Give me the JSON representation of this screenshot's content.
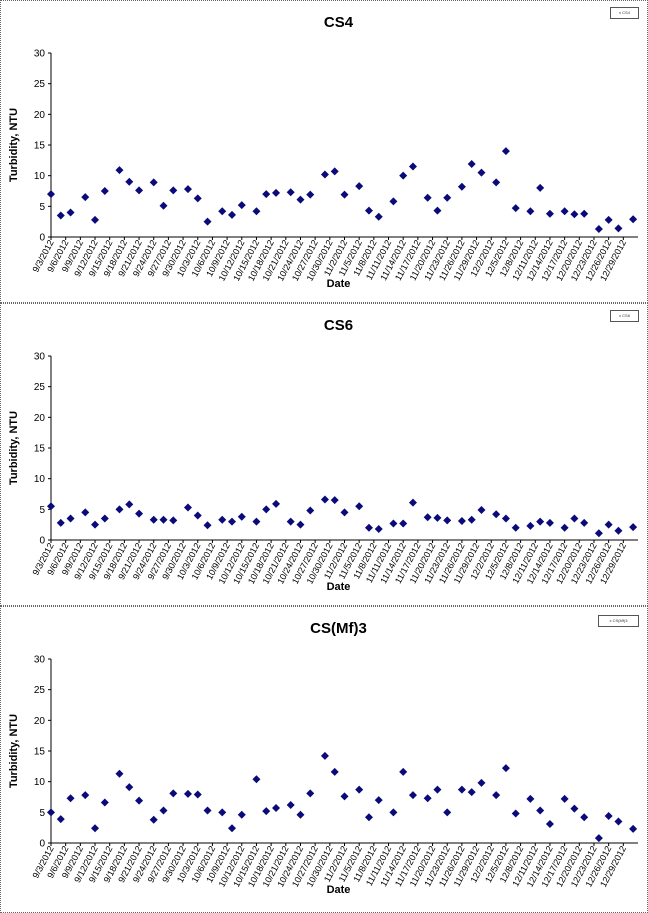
{
  "chart_data": [
    {
      "type": "scatter",
      "title": "CS4",
      "xlabel": "Date",
      "ylabel": "Turbidity, NTU",
      "legend": "x CS4",
      "legend_position": "top-right",
      "ylim": [
        0,
        30
      ],
      "yticks": [
        0,
        5,
        10,
        15,
        20,
        25,
        30
      ],
      "xlim": [
        "2012-09-03",
        "2013-01-01"
      ],
      "xtick_labels": [
        "9/3/2012",
        "9/6/2012",
        "9/9/2012",
        "9/12/2012",
        "9/15/2012",
        "9/18/2012",
        "9/21/2012",
        "9/24/2012",
        "9/27/2012",
        "9/30/2012",
        "10/3/2012",
        "10/6/2012",
        "10/9/2012",
        "10/12/2012",
        "10/15/2012",
        "10/18/2012",
        "10/21/2012",
        "10/24/2012",
        "10/27/2012",
        "10/30/2012",
        "11/2/2012",
        "11/5/2012",
        "11/8/2012",
        "11/11/2012",
        "11/14/2012",
        "11/17/2012",
        "11/20/2012",
        "11/23/2012",
        "11/26/2012",
        "11/29/2012",
        "12/2/2012",
        "12/5/2012",
        "12/8/2012",
        "12/11/2012",
        "12/14/2012",
        "12/17/2012",
        "12/20/2012",
        "12/23/2012",
        "12/26/2012",
        "12/29/2012"
      ],
      "marker_color": "#0a0a7a",
      "series": [
        {
          "x": [
            "2012-09-03",
            "2012-09-05",
            "2012-09-07",
            "2012-09-10",
            "2012-09-12",
            "2012-09-14",
            "2012-09-17",
            "2012-09-19",
            "2012-09-21",
            "2012-09-24",
            "2012-09-26",
            "2012-09-28",
            "2012-10-01",
            "2012-10-03",
            "2012-10-05",
            "2012-10-08",
            "2012-10-10",
            "2012-10-12",
            "2012-10-15",
            "2012-10-17",
            "2012-10-19",
            "2012-10-22",
            "2012-10-24",
            "2012-10-26",
            "2012-10-29",
            "2012-10-31",
            "2012-11-02",
            "2012-11-05",
            "2012-11-07",
            "2012-11-09",
            "2012-11-12",
            "2012-11-14",
            "2012-11-16",
            "2012-11-19",
            "2012-11-21",
            "2012-11-23",
            "2012-11-26",
            "2012-11-28",
            "2012-11-30",
            "2012-12-03",
            "2012-12-05",
            "2012-12-07",
            "2012-12-10",
            "2012-12-12",
            "2012-12-14",
            "2012-12-17",
            "2012-12-19",
            "2012-12-21",
            "2012-12-24",
            "2012-12-26",
            "2012-12-28",
            "2012-12-31"
          ],
          "y": [
            7.0,
            3.5,
            4.0,
            6.5,
            2.8,
            7.5,
            10.9,
            9.0,
            7.6,
            8.9,
            5.1,
            7.6,
            7.8,
            6.3,
            2.5,
            4.2,
            3.6,
            5.2,
            4.2,
            7.0,
            7.2,
            7.3,
            6.1,
            6.9,
            10.2,
            10.7,
            6.9,
            8.3,
            4.3,
            3.3,
            5.8,
            10.0,
            11.5,
            6.4,
            4.3,
            6.4,
            8.2,
            11.9,
            10.5,
            8.9,
            14.0,
            4.7,
            4.2,
            8.0,
            3.8,
            4.2,
            3.7,
            3.8,
            1.3,
            2.8,
            1.4,
            2.9
          ]
        }
      ]
    },
    {
      "type": "scatter",
      "title": "CS6",
      "xlabel": "Date",
      "ylabel": "Turbidity, NTU",
      "legend": "x CS6",
      "legend_position": "top-right",
      "ylim": [
        0,
        30
      ],
      "yticks": [
        0,
        5,
        10,
        15,
        20,
        25,
        30
      ],
      "xlim": [
        "2012-09-03",
        "2013-01-01"
      ],
      "xtick_labels": [
        "9/3/2012",
        "9/6/2012",
        "9/9/2012",
        "9/12/2012",
        "9/15/2012",
        "9/18/2012",
        "9/21/2012",
        "9/24/2012",
        "9/27/2012",
        "9/30/2012",
        "10/3/2012",
        "10/6/2012",
        "10/9/2012",
        "10/12/2012",
        "10/15/2012",
        "10/18/2012",
        "10/21/2012",
        "10/24/2012",
        "10/27/2012",
        "10/30/2012",
        "11/2/2012",
        "11/5/2012",
        "11/8/2012",
        "11/11/2012",
        "11/14/2012",
        "11/17/2012",
        "11/20/2012",
        "11/23/2012",
        "11/26/2012",
        "11/29/2012",
        "12/2/2012",
        "12/5/2012",
        "12/8/2012",
        "12/11/2012",
        "12/14/2012",
        "12/17/2012",
        "12/20/2012",
        "12/23/2012",
        "12/26/2012",
        "12/29/2012"
      ],
      "marker_color": "#0a0a7a",
      "series": [
        {
          "x": [
            "2012-09-03",
            "2012-09-05",
            "2012-09-07",
            "2012-09-10",
            "2012-09-12",
            "2012-09-14",
            "2012-09-17",
            "2012-09-19",
            "2012-09-21",
            "2012-09-24",
            "2012-09-26",
            "2012-09-28",
            "2012-10-01",
            "2012-10-03",
            "2012-10-05",
            "2012-10-08",
            "2012-10-10",
            "2012-10-12",
            "2012-10-15",
            "2012-10-17",
            "2012-10-19",
            "2012-10-22",
            "2012-10-24",
            "2012-10-26",
            "2012-10-29",
            "2012-10-31",
            "2012-11-02",
            "2012-11-05",
            "2012-11-07",
            "2012-11-09",
            "2012-11-12",
            "2012-11-14",
            "2012-11-16",
            "2012-11-19",
            "2012-11-21",
            "2012-11-23",
            "2012-11-26",
            "2012-11-28",
            "2012-11-30",
            "2012-12-03",
            "2012-12-05",
            "2012-12-07",
            "2012-12-10",
            "2012-12-12",
            "2012-12-14",
            "2012-12-17",
            "2012-12-19",
            "2012-12-21",
            "2012-12-24",
            "2012-12-26",
            "2012-12-28",
            "2012-12-31"
          ],
          "y": [
            5.5,
            2.8,
            3.5,
            4.5,
            2.5,
            3.5,
            5.0,
            5.8,
            4.3,
            3.3,
            3.3,
            3.2,
            5.3,
            4.0,
            2.4,
            3.3,
            3.0,
            3.8,
            3.0,
            5.0,
            5.9,
            3.0,
            2.5,
            4.8,
            6.6,
            6.5,
            4.5,
            5.5,
            2.0,
            1.8,
            2.7,
            2.7,
            6.1,
            3.7,
            3.6,
            3.2,
            3.1,
            3.3,
            4.9,
            4.2,
            3.5,
            2.0,
            2.3,
            3.0,
            2.8,
            2.0,
            3.5,
            2.8,
            1.1,
            2.5,
            1.5,
            2.1
          ]
        }
      ]
    },
    {
      "type": "scatter",
      "title": "CS(Mf)3",
      "xlabel": "Date",
      "ylabel": "Turbidity, NTU",
      "legend": "x CS(Mf)3",
      "legend_position": "top-right",
      "ylim": [
        0,
        30
      ],
      "yticks": [
        0,
        5,
        10,
        15,
        20,
        25,
        30
      ],
      "xlim": [
        "2012-09-03",
        "2013-01-01"
      ],
      "xtick_labels": [
        "9/3/2012",
        "9/6/2012",
        "9/9/2012",
        "9/12/2012",
        "9/15/2012",
        "9/18/2012",
        "9/21/2012",
        "9/24/2012",
        "9/27/2012",
        "9/30/2012",
        "10/3/2012",
        "10/6/2012",
        "10/9/2012",
        "10/12/2012",
        "10/15/2012",
        "10/18/2012",
        "10/21/2012",
        "10/24/2012",
        "10/27/2012",
        "10/30/2012",
        "11/2/2012",
        "11/5/2012",
        "11/8/2012",
        "11/11/2012",
        "11/14/2012",
        "11/17/2012",
        "11/20/2012",
        "11/23/2012",
        "11/26/2012",
        "11/29/2012",
        "12/2/2012",
        "12/5/2012",
        "12/8/2012",
        "12/11/2012",
        "12/14/2012",
        "12/17/2012",
        "12/20/2012",
        "12/23/2012",
        "12/26/2012",
        "12/29/2012"
      ],
      "marker_color": "#0a0a7a",
      "series": [
        {
          "x": [
            "2012-09-03",
            "2012-09-05",
            "2012-09-07",
            "2012-09-10",
            "2012-09-12",
            "2012-09-14",
            "2012-09-17",
            "2012-09-19",
            "2012-09-21",
            "2012-09-24",
            "2012-09-26",
            "2012-09-28",
            "2012-10-01",
            "2012-10-03",
            "2012-10-05",
            "2012-10-08",
            "2012-10-10",
            "2012-10-12",
            "2012-10-15",
            "2012-10-17",
            "2012-10-19",
            "2012-10-22",
            "2012-10-24",
            "2012-10-26",
            "2012-10-29",
            "2012-10-31",
            "2012-11-02",
            "2012-11-05",
            "2012-11-07",
            "2012-11-09",
            "2012-11-12",
            "2012-11-14",
            "2012-11-16",
            "2012-11-19",
            "2012-11-21",
            "2012-11-23",
            "2012-11-26",
            "2012-11-28",
            "2012-11-30",
            "2012-12-03",
            "2012-12-05",
            "2012-12-07",
            "2012-12-10",
            "2012-12-12",
            "2012-12-14",
            "2012-12-17",
            "2012-12-19",
            "2012-12-21",
            "2012-12-24",
            "2012-12-26",
            "2012-12-28",
            "2012-12-31"
          ],
          "y": [
            5.0,
            3.9,
            7.3,
            7.8,
            2.4,
            6.6,
            11.3,
            9.1,
            6.9,
            3.8,
            5.3,
            8.1,
            8.0,
            7.9,
            5.3,
            5.0,
            2.4,
            4.6,
            10.4,
            5.2,
            5.7,
            6.2,
            4.6,
            8.1,
            14.2,
            11.6,
            7.6,
            8.7,
            4.2,
            7.0,
            5.0,
            11.6,
            7.8,
            7.3,
            8.7,
            5.0,
            8.7,
            8.3,
            9.8,
            7.8,
            12.2,
            4.8,
            7.2,
            5.3,
            3.1,
            7.2,
            5.6,
            4.2,
            0.8,
            4.4,
            3.5,
            2.3
          ]
        }
      ]
    }
  ]
}
